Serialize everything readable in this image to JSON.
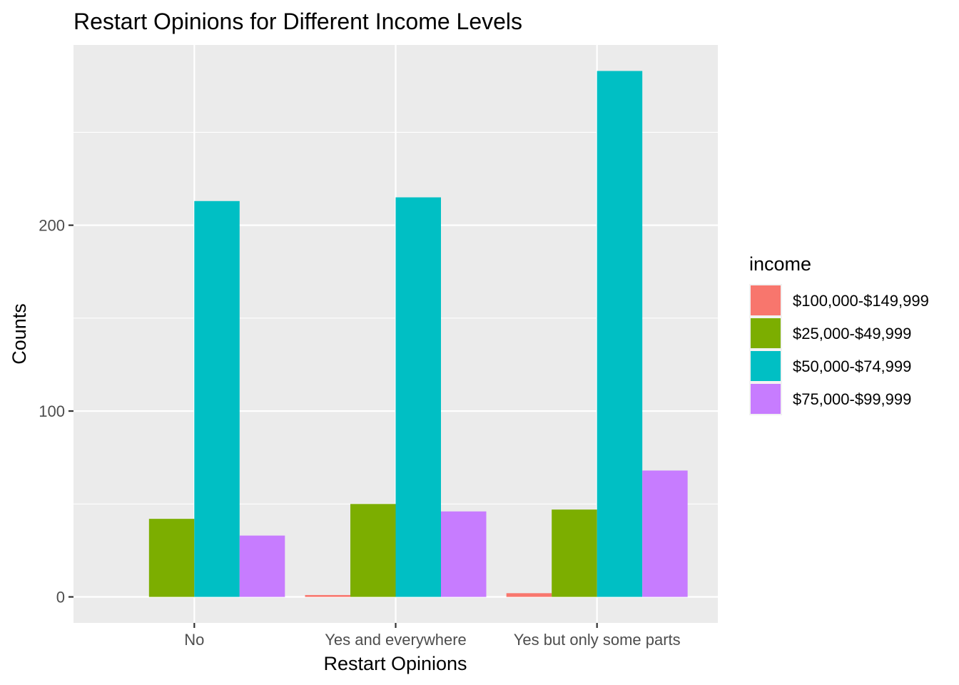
{
  "chart_data": {
    "type": "bar",
    "title": "Restart Opinions for Different Income Levels",
    "xlabel": "Restart Opinions",
    "ylabel": "Counts",
    "categories": [
      "No",
      "Yes and everywhere",
      "Yes but only some parts"
    ],
    "ylim": [
      -14,
      297
    ],
    "yticks": [
      0,
      100,
      200
    ],
    "grid": true,
    "legend": {
      "title": "income",
      "position": "right"
    },
    "series": [
      {
        "name": "$100,000-$149,999",
        "color": "#F8766D",
        "values": [
          null,
          1,
          2
        ]
      },
      {
        "name": "$25,000-$49,999",
        "color": "#7CAE00",
        "values": [
          42,
          50,
          47
        ]
      },
      {
        "name": "$50,000-$74,999",
        "color": "#00BFC4",
        "values": [
          213,
          215,
          283
        ]
      },
      {
        "name": "$75,000-$99,999",
        "color": "#C77CFF",
        "values": [
          33,
          46,
          68
        ]
      }
    ]
  }
}
